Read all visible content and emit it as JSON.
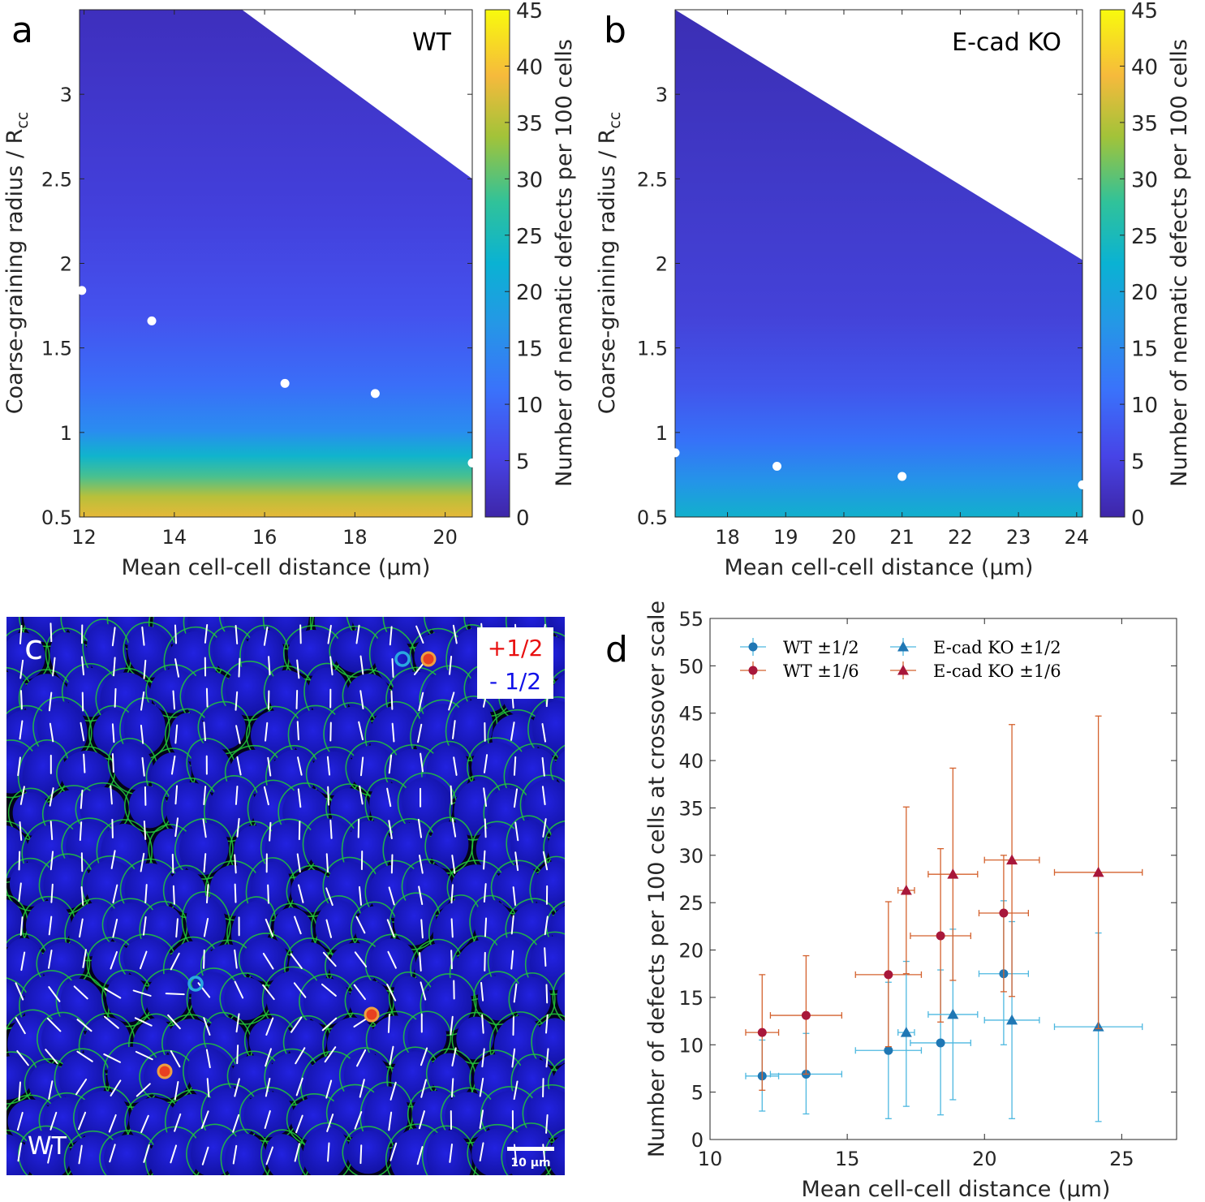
{
  "panels": {
    "a": {
      "letter": "a",
      "chart_data": {
        "type": "heatmap",
        "annotation": "WT",
        "xlabel": "Mean cell-cell distance (µm)",
        "ylabel_main": "Coarse-graining radius / R",
        "ylabel_sub": "cc",
        "xlim": [
          11.9,
          20.6
        ],
        "ylim": [
          0.5,
          3.5
        ],
        "xticks": [
          12,
          14,
          16,
          18,
          20
        ],
        "yticks": [
          0.5,
          1,
          1.5,
          2,
          2.5,
          3
        ],
        "ytick_labels": [
          "0.5",
          "1",
          "1.5",
          "2",
          "2.5",
          "3"
        ],
        "colorbar_label": "Number of nematic defects per 100 cells",
        "colorbar_ticks": [
          0,
          5,
          10,
          15,
          20,
          25,
          30,
          35,
          40,
          45
        ],
        "colorbar_range": [
          0,
          45
        ],
        "valid_region_upper_edge": [
          [
            15.5,
            3.5
          ],
          [
            20.6,
            2.5
          ]
        ],
        "crossover_points": [
          {
            "x": 11.95,
            "y": 1.84
          },
          {
            "x": 13.5,
            "y": 1.66
          },
          {
            "x": 16.45,
            "y": 1.29
          },
          {
            "x": 18.45,
            "y": 1.23
          },
          {
            "x": 20.6,
            "y": 0.82
          }
        ]
      }
    },
    "b": {
      "letter": "b",
      "chart_data": {
        "type": "heatmap",
        "annotation": "E-cad KO",
        "xlabel": "Mean cell-cell distance (µm)",
        "ylabel_main": "Coarse-graining radius / R",
        "ylabel_sub": "cc",
        "xlim": [
          17.1,
          24.1
        ],
        "ylim": [
          0.5,
          3.5
        ],
        "xticks": [
          18,
          19,
          20,
          21,
          22,
          23,
          24
        ],
        "yticks": [
          0.5,
          1,
          1.5,
          2,
          2.5,
          3
        ],
        "ytick_labels": [
          "0.5",
          "1",
          "1.5",
          "2",
          "2.5",
          "3"
        ],
        "colorbar_label": "Number of nematic defects per 100 cells",
        "colorbar_ticks": [
          0,
          5,
          10,
          15,
          20,
          25,
          30,
          35,
          40,
          45
        ],
        "colorbar_range": [
          0,
          45
        ],
        "valid_region_upper_edge": [
          [
            17.1,
            3.5
          ],
          [
            24.1,
            2.02
          ]
        ],
        "crossover_points": [
          {
            "x": 17.1,
            "y": 0.88
          },
          {
            "x": 18.85,
            "y": 0.8
          },
          {
            "x": 21.0,
            "y": 0.74
          },
          {
            "x": 24.1,
            "y": 0.69
          }
        ]
      }
    },
    "c": {
      "letter": "c",
      "image_label": "WT",
      "scale_bar": "10 µm",
      "legend_plus": "+1/2",
      "legend_minus": "- 1/2",
      "colors": {
        "background": "#03031a",
        "nucleus": "#1a1ad0",
        "membrane": "#22c83a",
        "plus_defect": "#e84020",
        "minus_defect": "#2aa8e0"
      }
    },
    "d": {
      "letter": "d",
      "chart_data": {
        "type": "scatter",
        "xlabel": "Mean cell-cell distance (µm)",
        "ylabel": "Number of defects per 100 cells at crossover scale",
        "xlim": [
          10,
          27
        ],
        "ylim": [
          0,
          55
        ],
        "xticks": [
          10,
          15,
          20,
          25
        ],
        "yticks": [
          0,
          5,
          10,
          15,
          20,
          25,
          30,
          35,
          40,
          45,
          50,
          55
        ],
        "legend_position": "top-left",
        "series": [
          {
            "name": "WT ±1/2",
            "marker": "circle",
            "color": "#1f77b4",
            "errcolor": "#4db8e0",
            "points": [
              {
                "x": 11.9,
                "y": 6.7,
                "xerr": 0.6,
                "ylo": 3.0,
                "yhi": 10.5
              },
              {
                "x": 13.5,
                "y": 6.9,
                "xerr": 1.3,
                "ylo": 2.7,
                "yhi": 11.2
              },
              {
                "x": 16.5,
                "y": 9.4,
                "xerr": 1.2,
                "ylo": 2.2,
                "yhi": 16.6
              },
              {
                "x": 18.4,
                "y": 10.2,
                "xerr": 1.1,
                "ylo": 2.6,
                "yhi": 17.9
              },
              {
                "x": 20.7,
                "y": 17.5,
                "xerr": 0.9,
                "ylo": 10.0,
                "yhi": 25.2
              }
            ]
          },
          {
            "name": "WT ±1/6",
            "marker": "circle",
            "color": "#a8173a",
            "errcolor": "#d4622e",
            "points": [
              {
                "x": 11.9,
                "y": 11.3,
                "xerr": 0.6,
                "ylo": 5.2,
                "yhi": 17.4
              },
              {
                "x": 13.5,
                "y": 13.1,
                "xerr": 1.3,
                "ylo": 6.9,
                "yhi": 19.4
              },
              {
                "x": 16.5,
                "y": 17.4,
                "xerr": 1.2,
                "ylo": 9.8,
                "yhi": 25.1
              },
              {
                "x": 18.4,
                "y": 21.5,
                "xerr": 1.1,
                "ylo": 12.4,
                "yhi": 30.7
              },
              {
                "x": 20.7,
                "y": 23.9,
                "xerr": 0.9,
                "ylo": 15.6,
                "yhi": 30.0
              }
            ]
          },
          {
            "name": "E-cad KO ±1/2",
            "marker": "triangle",
            "color": "#1f77b4",
            "errcolor": "#4db8e0",
            "points": [
              {
                "x": 17.15,
                "y": 11.3,
                "xerr": 0.3,
                "ylo": 3.5,
                "yhi": 18.8
              },
              {
                "x": 18.85,
                "y": 13.2,
                "xerr": 0.9,
                "ylo": 4.2,
                "yhi": 22.2
              },
              {
                "x": 21.0,
                "y": 12.6,
                "xerr": 1.0,
                "ylo": 2.2,
                "yhi": 23.0
              },
              {
                "x": 24.15,
                "y": 11.9,
                "xerr": 1.6,
                "ylo": 1.9,
                "yhi": 21.8
              }
            ]
          },
          {
            "name": "E-cad KO ±1/6",
            "marker": "triangle",
            "color": "#a8173a",
            "errcolor": "#d4622e",
            "points": [
              {
                "x": 17.15,
                "y": 26.3,
                "xerr": 0.3,
                "ylo": 17.5,
                "yhi": 35.1
              },
              {
                "x": 18.85,
                "y": 28.0,
                "xerr": 0.9,
                "ylo": 16.8,
                "yhi": 39.2
              },
              {
                "x": 21.0,
                "y": 29.5,
                "xerr": 1.0,
                "ylo": 15.1,
                "yhi": 43.8
              },
              {
                "x": 24.15,
                "y": 28.2,
                "xerr": 1.6,
                "ylo": 11.7,
                "yhi": 44.7
              }
            ]
          }
        ]
      }
    }
  }
}
